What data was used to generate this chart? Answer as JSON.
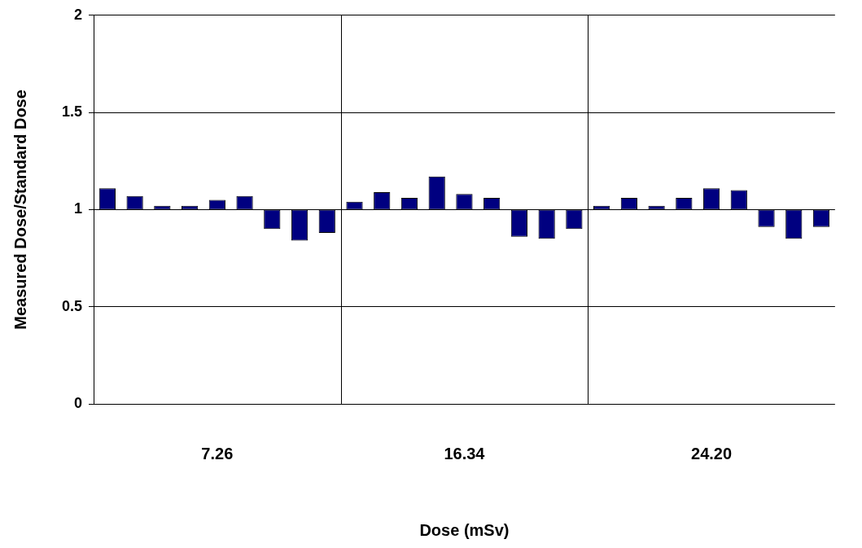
{
  "chart_data": {
    "type": "bar",
    "xlabel": "Dose (mSv)",
    "ylabel": "Measured Dose/Standard Dose",
    "categories": [
      null,
      null,
      null,
      null,
      "7.26",
      null,
      null,
      null,
      null,
      null,
      null,
      null,
      null,
      "16.34",
      null,
      null,
      null,
      null,
      null,
      null,
      null,
      null,
      "24.20",
      null,
      null,
      null,
      null
    ],
    "base": [
      1,
      1,
      1,
      1,
      1,
      1,
      1,
      1,
      1,
      1,
      1,
      1,
      1,
      1,
      1,
      1,
      1,
      1,
      1,
      1,
      1,
      1,
      1,
      1,
      1,
      1,
      1
    ],
    "values": [
      0.11,
      0.07,
      0.02,
      0.02,
      0.05,
      0.07,
      -0.1,
      -0.16,
      -0.12,
      0.04,
      0.09,
      0.06,
      0.17,
      0.08,
      0.06,
      -0.14,
      -0.15,
      -0.1,
      0.02,
      0.06,
      0.02,
      0.06,
      0.11,
      0.1,
      -0.09,
      -0.15,
      -0.09
    ],
    "color": "#000080",
    "ylim": [
      0,
      2
    ],
    "yticks": [
      0,
      0.5,
      1,
      1.5,
      2
    ],
    "grid": true,
    "legend": false
  }
}
